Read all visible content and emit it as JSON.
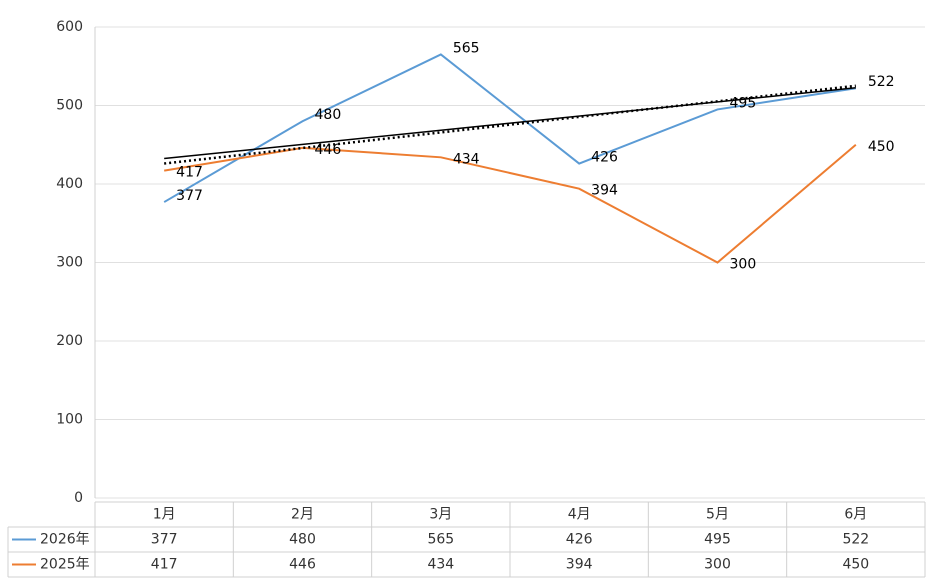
{
  "chart_data": {
    "type": "line",
    "categories": [
      "1月",
      "2月",
      "3月",
      "4月",
      "5月",
      "6月"
    ],
    "series": [
      {
        "name": "2026年",
        "color": "#5b9bd5",
        "values": [
          377,
          480,
          565,
          426,
          495,
          522
        ]
      },
      {
        "name": "2025年",
        "color": "#ed7d31",
        "values": [
          417,
          446,
          434,
          394,
          300,
          450
        ]
      }
    ],
    "ylim": [
      0,
      600
    ],
    "yticks": [
      0,
      100,
      200,
      300,
      400,
      500,
      600
    ],
    "grid": true,
    "data_labels": true,
    "trendline": "linear",
    "data_table": true
  }
}
